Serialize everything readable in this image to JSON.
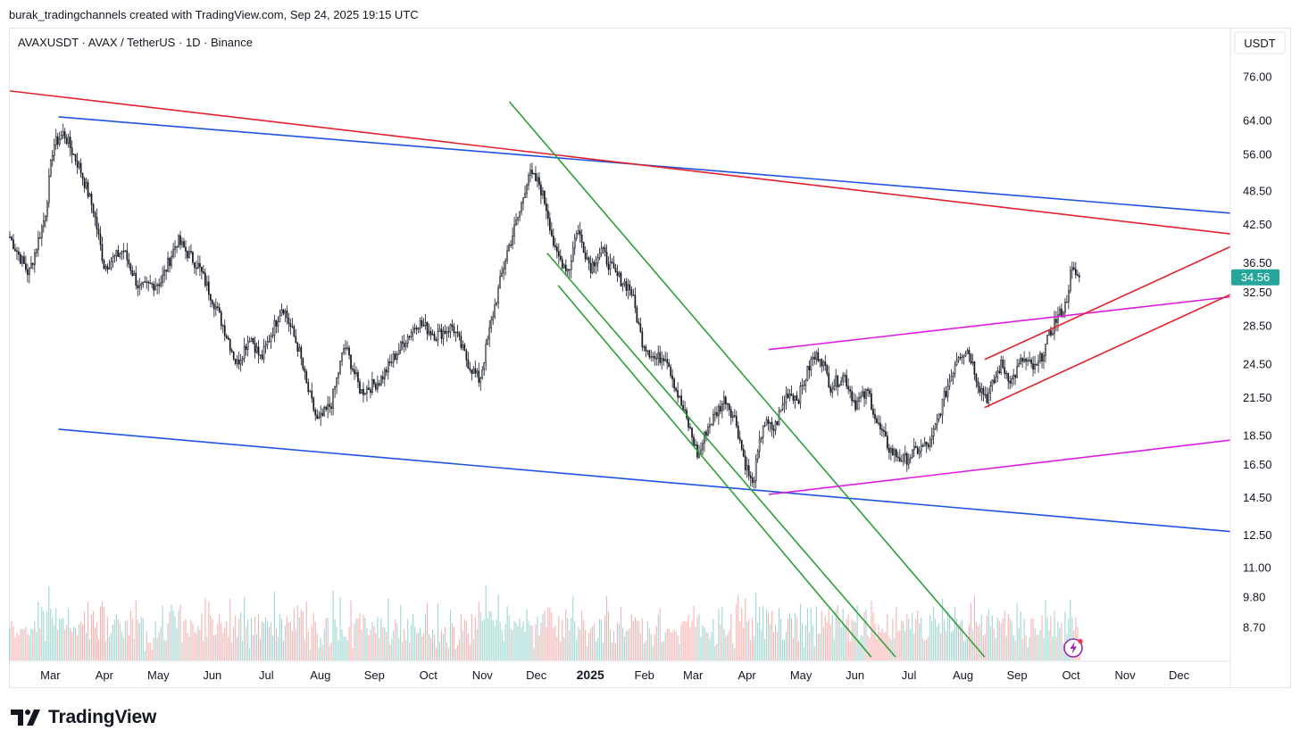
{
  "header": {
    "attribution": "burak_tradingchannels created with TradingView.com, Sep 24, 2025 19:15 UTC"
  },
  "brand": {
    "name": "TradingView",
    "logo_icon": "tradingview-logo-icon"
  },
  "chart_data": {
    "type": "candlestick",
    "title": "AVAXUSDT · AVAX / TetherUS · 1D · Binance",
    "currency": "USDT",
    "scale": "log",
    "ylim": [
      7.7,
      84
    ],
    "y_ticks": [
      "76.00",
      "64.00",
      "56.00",
      "48.50",
      "42.50",
      "36.50",
      "32.50",
      "28.50",
      "24.50",
      "21.50",
      "18.50",
      "16.50",
      "14.50",
      "12.50",
      "11.00",
      "9.80",
      "8.70"
    ],
    "x_ticks": [
      {
        "label": "Mar",
        "t": 0.75
      },
      {
        "label": "Apr",
        "t": 1.75
      },
      {
        "label": "May",
        "t": 2.75
      },
      {
        "label": "Jun",
        "t": 3.75
      },
      {
        "label": "Jul",
        "t": 4.75
      },
      {
        "label": "Aug",
        "t": 5.75
      },
      {
        "label": "Sep",
        "t": 6.75
      },
      {
        "label": "Oct",
        "t": 7.75
      },
      {
        "label": "Nov",
        "t": 8.75
      },
      {
        "label": "Dec",
        "t": 9.75
      },
      {
        "label": "2025",
        "t": 10.75,
        "bold": true
      },
      {
        "label": "Feb",
        "t": 11.75
      },
      {
        "label": "Mar",
        "t": 12.65
      },
      {
        "label": "Apr",
        "t": 13.65
      },
      {
        "label": "May",
        "t": 14.65
      },
      {
        "label": "Jun",
        "t": 15.65
      },
      {
        "label": "Jul",
        "t": 16.65
      },
      {
        "label": "Aug",
        "t": 17.65
      },
      {
        "label": "Sep",
        "t": 18.65
      },
      {
        "label": "Oct",
        "t": 19.65
      },
      {
        "label": "Nov",
        "t": 20.65
      },
      {
        "label": "Dec",
        "t": 21.65
      }
    ],
    "last_price": "34.56",
    "last_price_color": "#26a69a",
    "up_color": "#26a69a",
    "down_color": "#ef5350",
    "price_path": [
      {
        "t": 0.0,
        "p": 40.5
      },
      {
        "t": 0.35,
        "p": 35.0
      },
      {
        "t": 0.65,
        "p": 44.0
      },
      {
        "t": 0.8,
        "p": 58.0
      },
      {
        "t": 1.0,
        "p": 61.0
      },
      {
        "t": 1.3,
        "p": 53.0
      },
      {
        "t": 1.55,
        "p": 45.0
      },
      {
        "t": 1.75,
        "p": 36.0
      },
      {
        "t": 2.1,
        "p": 38.5
      },
      {
        "t": 2.4,
        "p": 33.0
      },
      {
        "t": 2.8,
        "p": 34.0
      },
      {
        "t": 3.1,
        "p": 40.0
      },
      {
        "t": 3.5,
        "p": 36.0
      },
      {
        "t": 3.8,
        "p": 31.0
      },
      {
        "t": 4.05,
        "p": 27.0
      },
      {
        "t": 4.2,
        "p": 24.5
      },
      {
        "t": 4.45,
        "p": 27.5
      },
      {
        "t": 4.65,
        "p": 25.0
      },
      {
        "t": 5.05,
        "p": 31.0
      },
      {
        "t": 5.35,
        "p": 26.0
      },
      {
        "t": 5.5,
        "p": 22.5
      },
      {
        "t": 5.7,
        "p": 19.5
      },
      {
        "t": 5.95,
        "p": 21.0
      },
      {
        "t": 6.2,
        "p": 26.5
      },
      {
        "t": 6.5,
        "p": 22.0
      },
      {
        "t": 6.85,
        "p": 23.0
      },
      {
        "t": 7.2,
        "p": 26.0
      },
      {
        "t": 7.55,
        "p": 29.0
      },
      {
        "t": 7.9,
        "p": 27.5
      },
      {
        "t": 8.2,
        "p": 28.5
      },
      {
        "t": 8.5,
        "p": 24.5
      },
      {
        "t": 8.7,
        "p": 23.0
      },
      {
        "t": 8.95,
        "p": 30.0
      },
      {
        "t": 9.2,
        "p": 38.0
      },
      {
        "t": 9.45,
        "p": 45.0
      },
      {
        "t": 9.6,
        "p": 52.0
      },
      {
        "t": 9.8,
        "p": 50.0
      },
      {
        "t": 9.95,
        "p": 45.0
      },
      {
        "t": 10.1,
        "p": 38.0
      },
      {
        "t": 10.35,
        "p": 35.5
      },
      {
        "t": 10.5,
        "p": 42.0
      },
      {
        "t": 10.75,
        "p": 36.0
      },
      {
        "t": 10.95,
        "p": 38.5
      },
      {
        "t": 11.2,
        "p": 35.0
      },
      {
        "t": 11.5,
        "p": 33.0
      },
      {
        "t": 11.7,
        "p": 27.0
      },
      {
        "t": 11.95,
        "p": 25.0
      },
      {
        "t": 12.15,
        "p": 25.5
      },
      {
        "t": 12.35,
        "p": 22.0
      },
      {
        "t": 12.55,
        "p": 19.5
      },
      {
        "t": 12.75,
        "p": 17.0
      },
      {
        "t": 12.9,
        "p": 19.0
      },
      {
        "t": 13.25,
        "p": 21.5
      },
      {
        "t": 13.45,
        "p": 19.5
      },
      {
        "t": 13.6,
        "p": 16.8
      },
      {
        "t": 13.75,
        "p": 15.2
      },
      {
        "t": 13.95,
        "p": 19.5
      },
      {
        "t": 14.15,
        "p": 19.0
      },
      {
        "t": 14.4,
        "p": 22.0
      },
      {
        "t": 14.6,
        "p": 21.5
      },
      {
        "t": 14.85,
        "p": 25.0
      },
      {
        "t": 15.0,
        "p": 25.5
      },
      {
        "t": 15.2,
        "p": 22.5
      },
      {
        "t": 15.45,
        "p": 23.5
      },
      {
        "t": 15.65,
        "p": 21.0
      },
      {
        "t": 15.9,
        "p": 22.0
      },
      {
        "t": 16.05,
        "p": 19.5
      },
      {
        "t": 16.3,
        "p": 17.5
      },
      {
        "t": 16.55,
        "p": 16.8
      },
      {
        "t": 16.8,
        "p": 17.5
      },
      {
        "t": 17.05,
        "p": 18.0
      },
      {
        "t": 17.3,
        "p": 21.5
      },
      {
        "t": 17.55,
        "p": 25.5
      },
      {
        "t": 17.75,
        "p": 26.0
      },
      {
        "t": 17.95,
        "p": 22.5
      },
      {
        "t": 18.1,
        "p": 21.5
      },
      {
        "t": 18.35,
        "p": 24.5
      },
      {
        "t": 18.55,
        "p": 23.0
      },
      {
        "t": 18.75,
        "p": 25.0
      },
      {
        "t": 19.0,
        "p": 24.0
      },
      {
        "t": 19.15,
        "p": 26.0
      },
      {
        "t": 19.35,
        "p": 29.0
      },
      {
        "t": 19.55,
        "p": 31.0
      },
      {
        "t": 19.65,
        "p": 35.5
      },
      {
        "t": 19.8,
        "p": 34.56
      }
    ],
    "trendlines": [
      {
        "name": "blue-channel-upper-line",
        "color": "#1e53e5",
        "t1": 0.9,
        "p1": 65.0,
        "t2": 22.6,
        "p2": 44.5
      },
      {
        "name": "blue-channel-lower-line",
        "color": "#1e53e5",
        "t1": 0.9,
        "p1": 19.0,
        "t2": 22.6,
        "p2": 12.7
      },
      {
        "name": "red-resistance-line",
        "color": "#e5202b",
        "t1": 0.0,
        "p1": 72.0,
        "t2": 22.6,
        "p2": 41.0
      },
      {
        "name": "green-channel-upper-line",
        "color": "#2e9e3b",
        "t1": 9.25,
        "p1": 69.0,
        "t2": 18.05,
        "p2": 7.75
      },
      {
        "name": "green-channel-middle-line",
        "color": "#2e9e3b",
        "t1": 9.95,
        "p1": 38.0,
        "t2": 16.4,
        "p2": 7.75
      },
      {
        "name": "green-channel-lower-line",
        "color": "#2e9e3b",
        "t1": 10.15,
        "p1": 33.5,
        "t2": 15.95,
        "p2": 7.75
      },
      {
        "name": "magenta-upper-line",
        "color": "#e01ce0",
        "t1": 14.05,
        "p1": 26.0,
        "t2": 22.6,
        "p2": 32.0
      },
      {
        "name": "magenta-lower-line",
        "color": "#e01ce0",
        "t1": 14.05,
        "p1": 14.7,
        "t2": 22.6,
        "p2": 18.2
      },
      {
        "name": "red-rising-channel-upper-line",
        "color": "#e5202b",
        "t1": 18.05,
        "p1": 25.0,
        "t2": 22.6,
        "p2": 39.0
      },
      {
        "name": "red-rising-channel-lower-line",
        "color": "#e5202b",
        "t1": 18.05,
        "p1": 20.7,
        "t2": 22.6,
        "p2": 32.3
      }
    ]
  }
}
